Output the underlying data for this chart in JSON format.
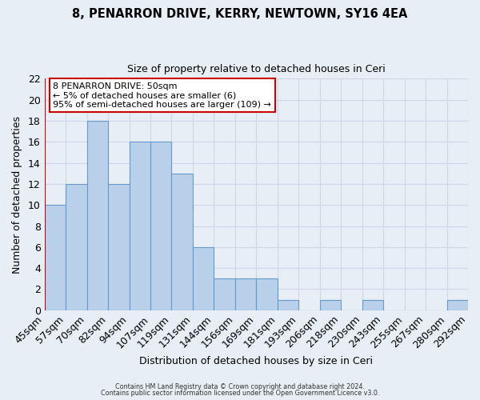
{
  "title1": "8, PENARRON DRIVE, KERRY, NEWTOWN, SY16 4EA",
  "title2": "Size of property relative to detached houses in Ceri",
  "xlabel": "Distribution of detached houses by size in Ceri",
  "ylabel": "Number of detached properties",
  "bar_values": [
    10,
    12,
    18,
    12,
    16,
    16,
    13,
    6,
    3,
    3,
    3,
    1,
    0,
    1,
    0,
    1,
    0,
    0,
    0,
    1
  ],
  "bin_labels": [
    "45sqm",
    "57sqm",
    "70sqm",
    "82sqm",
    "94sqm",
    "107sqm",
    "119sqm",
    "131sqm",
    "144sqm",
    "156sqm",
    "169sqm",
    "181sqm",
    "193sqm",
    "206sqm",
    "218sqm",
    "230sqm",
    "243sqm",
    "255sqm",
    "267sqm",
    "280sqm",
    "292sqm"
  ],
  "bar_color": "#b8d0ea",
  "bar_edge_color": "#6699cc",
  "grid_color": "#ccd8e8",
  "plot_bg_color": "#e8eef5",
  "fig_bg_color": "#e8eef5",
  "property_line_color": "#cc0000",
  "ylim": [
    0,
    22
  ],
  "yticks": [
    0,
    2,
    4,
    6,
    8,
    10,
    12,
    14,
    16,
    18,
    20,
    22
  ],
  "annotation_title": "8 PENARRON DRIVE: 50sqm",
  "annotation_line1": "← 5% of detached houses are smaller (6)",
  "annotation_line2": "95% of semi-detached houses are larger (109) →",
  "annotation_box_edge": "#cc0000",
  "footer1": "Contains HM Land Registry data © Crown copyright and database right 2024.",
  "footer2": "Contains public sector information licensed under the Open Government Licence v3.0."
}
